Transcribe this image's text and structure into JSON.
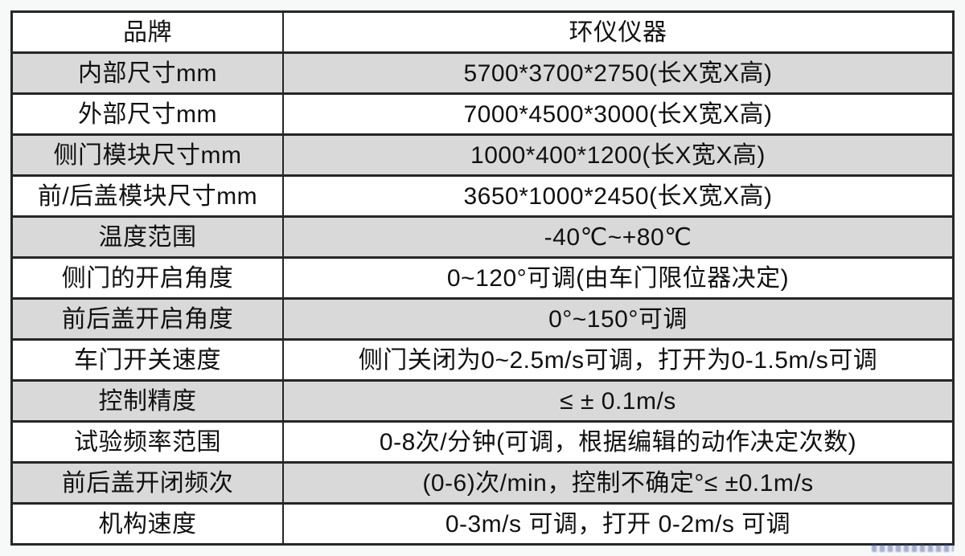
{
  "table": {
    "header": {
      "label": "品牌",
      "value": "环仪仪器"
    },
    "rows": [
      {
        "label": "内部尺寸mm",
        "value": "5700*3700*2750(长X宽X高)",
        "shaded": true
      },
      {
        "label": "外部尺寸mm",
        "value": "7000*4500*3000(长X宽X高)",
        "shaded": false
      },
      {
        "label": "侧门模块尺寸mm",
        "value": "1000*400*1200(长X宽X高)",
        "shaded": true
      },
      {
        "label": "前/后盖模块尺寸mm",
        "value": "3650*1000*2450(长X宽X高)",
        "shaded": false
      },
      {
        "label": "温度范围",
        "value": "-40℃~+80℃",
        "shaded": true
      },
      {
        "label": "侧门的开启角度",
        "value": "0~120°可调(由车门限位器决定)",
        "shaded": false
      },
      {
        "label": "前后盖开启角度",
        "value": "0°~150°可调",
        "shaded": true
      },
      {
        "label": "车门开关速度",
        "value": "侧门关闭为0~2.5m/s可调，打开为0-1.5m/s可调",
        "shaded": false
      },
      {
        "label": "控制精度",
        "value": "≤ ± 0.1m/s",
        "shaded": true
      },
      {
        "label": "试验频率范围",
        "value": "0-8次/分钟(可调，根据编辑的动作决定次数)",
        "shaded": false
      },
      {
        "label": "前后盖开闭频次",
        "value": "(0-6)次/min，控制不确定°≤ ±0.1m/s",
        "shaded": true
      },
      {
        "label": "机构速度",
        "value": "0-3m/s 可调，打开 0-2m/s 可调",
        "shaded": false
      }
    ],
    "colors": {
      "shaded_row": "#d9d9d9",
      "row": "#ffffff",
      "border": "#262626",
      "text": "#111111"
    }
  },
  "watermark": {
    "color": "#2c4a9b"
  }
}
